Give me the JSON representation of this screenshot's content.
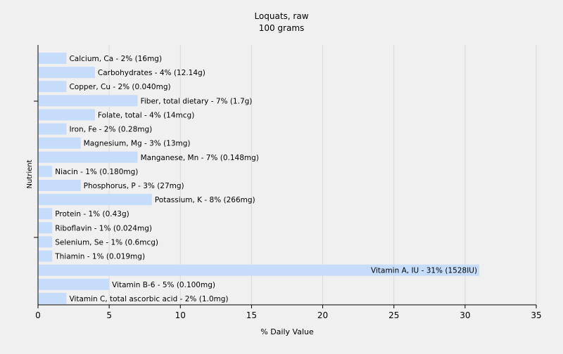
{
  "chart_data": {
    "type": "bar",
    "orientation": "horizontal",
    "title": "Loquats, raw",
    "subtitle": "100 grams",
    "xlabel": "% Daily Value",
    "ylabel": "Nutrient",
    "xlim": [
      0,
      35
    ],
    "xticks": [
      "0",
      "5",
      "10",
      "15",
      "20",
      "25",
      "30",
      "35"
    ],
    "grid": true,
    "bar_color": "#c6dcfb",
    "categories": [
      "Calcium, Ca - 2% (16mg)",
      "Carbohydrates - 4% (12.14g)",
      "Copper, Cu - 2% (0.040mg)",
      "Fiber, total dietary - 7% (1.7g)",
      "Folate, total - 4% (14mcg)",
      "Iron, Fe - 2% (0.28mg)",
      "Magnesium, Mg - 3% (13mg)",
      "Manganese, Mn - 7% (0.148mg)",
      "Niacin - 1% (0.180mg)",
      "Phosphorus, P - 3% (27mg)",
      "Potassium, K - 8% (266mg)",
      "Protein - 1% (0.43g)",
      "Riboflavin - 1% (0.024mg)",
      "Selenium, Se - 1% (0.6mcg)",
      "Thiamin - 1% (0.019mg)",
      "Vitamin A, IU - 31% (1528IU)",
      "Vitamin B-6 - 5% (0.100mg)",
      "Vitamin C, total ascorbic acid - 2% (1.0mg)"
    ],
    "values": [
      2,
      4,
      2,
      7,
      4,
      2,
      3,
      7,
      1,
      3,
      8,
      1,
      1,
      1,
      1,
      31,
      5,
      2
    ]
  }
}
